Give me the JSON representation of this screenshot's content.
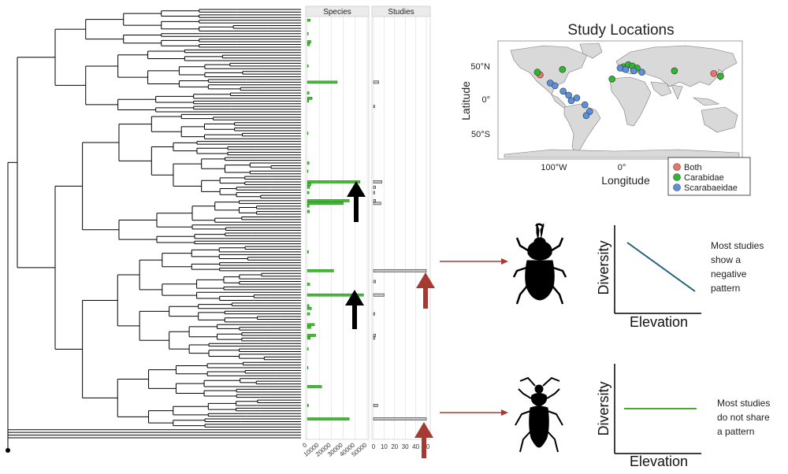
{
  "colors": {
    "species_bar": "#3cbf2e",
    "studies_bar": "#c8c8c8",
    "arrow_black": "#000000",
    "arrow_red": "#a53a33",
    "map_land": "#d9d9d9",
    "map_ocean": "#ffffff",
    "both": "#e8756a",
    "carabidae": "#2eb82e",
    "scarabaeidae": "#5b8fe0",
    "negative_line": "#1f5f7a",
    "flat_line": "#4aa82a"
  },
  "phylogeny": {
    "species_header": "Species",
    "studies_header": "Studies",
    "species_axis_ticks": [
      "0",
      "10000",
      "20000",
      "30000",
      "40000",
      "50000"
    ],
    "studies_axis_ticks": [
      "0",
      "10",
      "20",
      "30",
      "40",
      "50"
    ],
    "species_max": 50000,
    "studies_max": 50,
    "tips_count": 110,
    "species_values": [
      {
        "tip": 4,
        "value": 2500
      },
      {
        "tip": 9,
        "value": 800
      },
      {
        "tip": 12,
        "value": 3000
      },
      {
        "tip": 13,
        "value": 2000
      },
      {
        "tip": 21,
        "value": 800
      },
      {
        "tip": 27,
        "value": 25000
      },
      {
        "tip": 31,
        "value": 1500
      },
      {
        "tip": 33,
        "value": 4000
      },
      {
        "tip": 34,
        "value": 1200
      },
      {
        "tip": 46,
        "value": 600
      },
      {
        "tip": 57,
        "value": 1500
      },
      {
        "tip": 60,
        "value": 500
      },
      {
        "tip": 64,
        "value": 44000
      },
      {
        "tip": 65,
        "value": 3000
      },
      {
        "tip": 66,
        "value": 2000
      },
      {
        "tip": 68,
        "value": 1500
      },
      {
        "tip": 71,
        "value": 35000
      },
      {
        "tip": 72,
        "value": 30000
      },
      {
        "tip": 73,
        "value": 1500
      },
      {
        "tip": 75,
        "value": 1800
      },
      {
        "tip": 90,
        "value": 1000
      },
      {
        "tip": 97,
        "value": 22000
      },
      {
        "tip": 102,
        "value": 2000
      },
      {
        "tip": 106,
        "value": 47000
      },
      {
        "tip": 110,
        "value": 1500
      },
      {
        "tip": 111,
        "value": 3500
      },
      {
        "tip": 113,
        "value": 2000
      },
      {
        "tip": 117,
        "value": 6000
      },
      {
        "tip": 118,
        "value": 3000
      },
      {
        "tip": 121,
        "value": 7000
      },
      {
        "tip": 122,
        "value": 2500
      },
      {
        "tip": 126,
        "value": 800
      },
      {
        "tip": 133,
        "value": 500
      },
      {
        "tip": 140,
        "value": 12000
      },
      {
        "tip": 147,
        "value": 1000
      },
      {
        "tip": 152,
        "value": 35000
      }
    ],
    "study_values": [
      {
        "tip": 27,
        "value": 5
      },
      {
        "tip": 36,
        "value": 1
      },
      {
        "tip": 64,
        "value": 8
      },
      {
        "tip": 66,
        "value": 2
      },
      {
        "tip": 68,
        "value": 1
      },
      {
        "tip": 71,
        "value": 2
      },
      {
        "tip": 72,
        "value": 7
      },
      {
        "tip": 97,
        "value": 50
      },
      {
        "tip": 101,
        "value": 2
      },
      {
        "tip": 106,
        "value": 10
      },
      {
        "tip": 113,
        "value": 1
      },
      {
        "tip": 121,
        "value": 2
      },
      {
        "tip": 122,
        "value": 1
      },
      {
        "tip": 147,
        "value": 4
      },
      {
        "tip": 152,
        "value": 50
      }
    ]
  },
  "map": {
    "title": "Study Locations",
    "xlabel": "Longitude",
    "ylabel": "Latitude",
    "lat_ticks": [
      "50°N",
      "0°",
      "50°S"
    ],
    "lon_ticks": [
      "100°W",
      "0°"
    ],
    "legend": [
      "Both",
      "Carabidae",
      "Scarabaeidae"
    ],
    "points": [
      {
        "group": "Both",
        "lon": -118,
        "lat": 34
      },
      {
        "group": "Both",
        "lon": 138,
        "lat": 36
      },
      {
        "group": "Carabidae",
        "lon": -122,
        "lat": 38
      },
      {
        "group": "Carabidae",
        "lon": -85,
        "lat": 42
      },
      {
        "group": "Carabidae",
        "lon": -12,
        "lat": 28
      },
      {
        "group": "Carabidae",
        "lon": 5,
        "lat": 46
      },
      {
        "group": "Carabidae",
        "lon": 12,
        "lat": 49
      },
      {
        "group": "Carabidae",
        "lon": 18,
        "lat": 47
      },
      {
        "group": "Carabidae",
        "lon": 25,
        "lat": 44
      },
      {
        "group": "Carabidae",
        "lon": 80,
        "lat": 40
      },
      {
        "group": "Carabidae",
        "lon": 148,
        "lat": 32
      },
      {
        "group": "Scarabaeidae",
        "lon": -103,
        "lat": 22
      },
      {
        "group": "Scarabaeidae",
        "lon": -96,
        "lat": 18
      },
      {
        "group": "Scarabaeidae",
        "lon": -84,
        "lat": 10
      },
      {
        "group": "Scarabaeidae",
        "lon": -76,
        "lat": 4
      },
      {
        "group": "Scarabaeidae",
        "lon": -72,
        "lat": -4
      },
      {
        "group": "Scarabaeidae",
        "lon": -64,
        "lat": 0
      },
      {
        "group": "Scarabaeidae",
        "lon": -52,
        "lat": -10
      },
      {
        "group": "Scarabaeidae",
        "lon": -45,
        "lat": -20
      },
      {
        "group": "Scarabaeidae",
        "lon": -50,
        "lat": -26
      },
      {
        "group": "Scarabaeidae",
        "lon": 0,
        "lat": 44
      },
      {
        "group": "Scarabaeidae",
        "lon": 8,
        "lat": 42
      },
      {
        "group": "Scarabaeidae",
        "lon": 20,
        "lat": 40
      },
      {
        "group": "Scarabaeidae",
        "lon": 32,
        "lat": 38
      }
    ]
  },
  "panels": {
    "top": {
      "xlabel": "Elevation",
      "ylabel": "Diversity",
      "note_lines": [
        "Most studies",
        "show a",
        "negative",
        "pattern"
      ]
    },
    "bottom": {
      "xlabel": "Elevation",
      "ylabel": "Diversity",
      "note_lines": [
        "Most studies",
        "do not share",
        "a pattern"
      ]
    }
  }
}
